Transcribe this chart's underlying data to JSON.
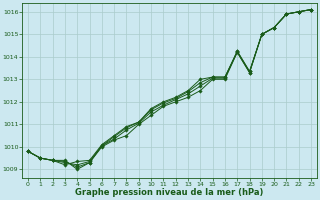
{
  "x": [
    0,
    1,
    2,
    3,
    4,
    5,
    6,
    7,
    8,
    9,
    10,
    11,
    12,
    13,
    14,
    15,
    16,
    17,
    18,
    19,
    20,
    21,
    22,
    23
  ],
  "line1": [
    1009.8,
    1009.5,
    1009.4,
    1009.4,
    1009.0,
    1009.3,
    1010.0,
    1010.3,
    1010.5,
    1011.0,
    1011.4,
    1011.8,
    1012.0,
    1012.2,
    1012.5,
    1013.0,
    1013.0,
    1014.2,
    1013.3,
    1015.0,
    1015.3,
    1015.9,
    1016.0,
    1016.1
  ],
  "line2": [
    1009.8,
    1009.5,
    1009.4,
    1009.35,
    1009.1,
    1009.3,
    1010.05,
    1010.35,
    1010.75,
    1011.05,
    1011.55,
    1011.85,
    1012.1,
    1012.35,
    1012.7,
    1013.05,
    1013.05,
    1014.25,
    1013.35,
    1015.0,
    1015.3,
    1015.9,
    1016.0,
    1016.1
  ],
  "line3": [
    1009.8,
    1009.5,
    1009.4,
    1009.2,
    1009.35,
    1009.4,
    1010.1,
    1010.5,
    1010.9,
    1011.1,
    1011.7,
    1012.0,
    1012.2,
    1012.5,
    1013.0,
    1013.1,
    1013.1,
    1014.2,
    1013.3,
    1015.0,
    1015.3,
    1015.9,
    1016.0,
    1016.1
  ],
  "line4": [
    1009.8,
    1009.5,
    1009.4,
    1009.3,
    1009.2,
    1009.35,
    1010.05,
    1010.45,
    1010.85,
    1011.1,
    1011.65,
    1011.95,
    1012.15,
    1012.45,
    1012.85,
    1013.1,
    1013.1,
    1014.25,
    1013.35,
    1015.0,
    1015.3,
    1015.9,
    1016.0,
    1016.1
  ],
  "bg_color": "#cce8f0",
  "grid_color": "#aacccc",
  "line_color": "#1a5c1a",
  "marker_color": "#1a5c1a",
  "xlabel": "Graphe pression niveau de la mer (hPa)",
  "ylim": [
    1008.6,
    1016.4
  ],
  "xlim": [
    -0.5,
    23.5
  ],
  "yticks": [
    1009,
    1010,
    1011,
    1012,
    1013,
    1014,
    1015,
    1016
  ],
  "xticks": [
    0,
    1,
    2,
    3,
    4,
    5,
    6,
    7,
    8,
    9,
    10,
    11,
    12,
    13,
    14,
    15,
    16,
    17,
    18,
    19,
    20,
    21,
    22,
    23
  ],
  "figsize": [
    3.2,
    2.0
  ],
  "dpi": 100
}
